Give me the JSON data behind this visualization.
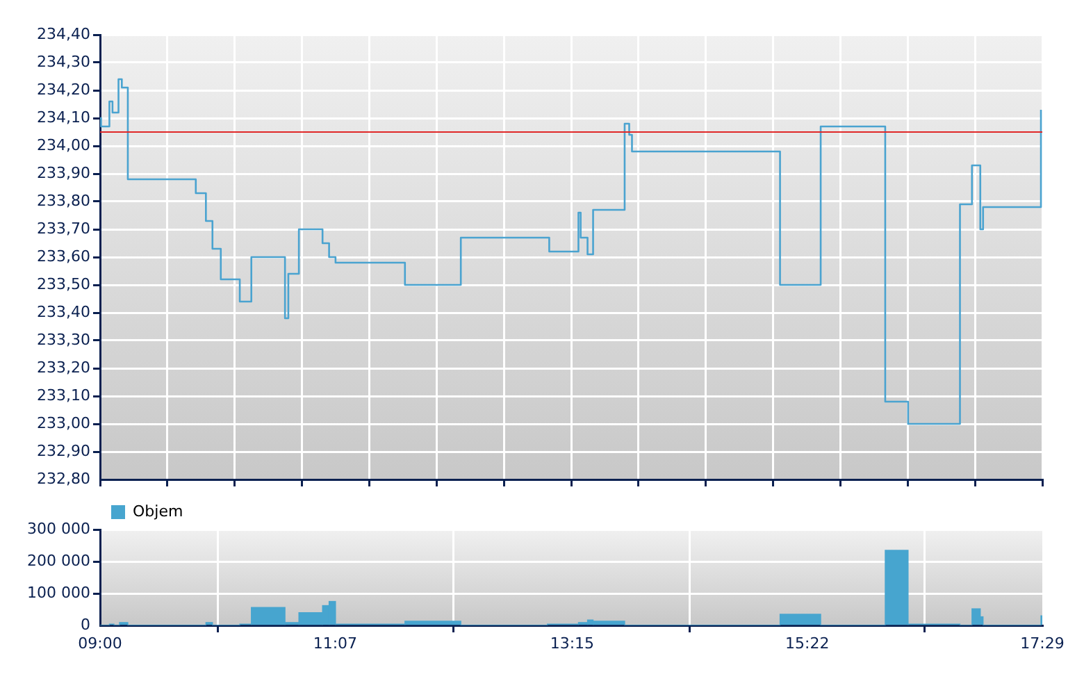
{
  "chart_data": [
    {
      "type": "step",
      "tick_labels": "y",
      "grid": true,
      "legend": false,
      "x": [
        9.0,
        9.009,
        9.084,
        9.112,
        9.166,
        9.196,
        9.25,
        9.862,
        9.953,
        10.012,
        10.087,
        10.258,
        10.362,
        10.665,
        10.695,
        10.79,
        11.003,
        11.062,
        11.12,
        11.745,
        12.248,
        13.044,
        13.307,
        13.327,
        13.389,
        13.439,
        13.723,
        13.764,
        13.789,
        15.122,
        15.488,
        16.069,
        16.275,
        16.742,
        16.85,
        16.925,
        16.95,
        17.471
      ],
      "series": [
        {
          "color": "#4aa3d0",
          "values": [
            234.1,
            234.07,
            234.16,
            234.12,
            234.24,
            234.21,
            233.88,
            233.83,
            233.73,
            233.63,
            233.52,
            233.44,
            233.6,
            233.38,
            233.54,
            233.7,
            233.65,
            233.6,
            233.58,
            233.5,
            233.67,
            233.62,
            233.76,
            233.67,
            233.61,
            233.77,
            234.08,
            234.04,
            233.98,
            233.5,
            234.07,
            233.08,
            233.0,
            233.79,
            233.93,
            233.7,
            233.78,
            234.13
          ]
        }
      ],
      "xlim": [
        9.0,
        17.4833
      ],
      "xticks": [
        {
          "value": 9.0,
          "label": null
        },
        {
          "value": 9.606,
          "label": null
        },
        {
          "value": 10.212,
          "label": null
        },
        {
          "value": 10.818,
          "label": null
        },
        {
          "value": 11.424,
          "label": null
        },
        {
          "value": 12.03,
          "label": null
        },
        {
          "value": 12.636,
          "label": null
        },
        {
          "value": 13.242,
          "label": null
        },
        {
          "value": 13.848,
          "label": null
        },
        {
          "value": 14.454,
          "label": null
        },
        {
          "value": 15.06,
          "label": null
        },
        {
          "value": 15.665,
          "label": null
        },
        {
          "value": 16.271,
          "label": null
        },
        {
          "value": 16.877,
          "label": null
        },
        {
          "value": 17.4833,
          "label": null
        }
      ],
      "ylim": [
        232.8,
        234.4
      ],
      "yticks": [
        {
          "value": 232.8,
          "label": "232,80"
        },
        {
          "value": 232.9,
          "label": "232,90"
        },
        {
          "value": 233.0,
          "label": "233,00"
        },
        {
          "value": 233.1,
          "label": "233,10"
        },
        {
          "value": 233.2,
          "label": "233,20"
        },
        {
          "value": 233.3,
          "label": "233,30"
        },
        {
          "value": 233.4,
          "label": "233,40"
        },
        {
          "value": 233.5,
          "label": "233,50"
        },
        {
          "value": 233.6,
          "label": "233,60"
        },
        {
          "value": 233.7,
          "label": "233,70"
        },
        {
          "value": 233.8,
          "label": "233,80"
        },
        {
          "value": 233.9,
          "label": "233,90"
        },
        {
          "value": 234.0,
          "label": "234,00"
        },
        {
          "value": 234.1,
          "label": "234,10"
        },
        {
          "value": 234.2,
          "label": "234,20"
        },
        {
          "value": 234.3,
          "label": "234,30"
        },
        {
          "value": 234.4,
          "label": "234,40"
        }
      ],
      "ref_lines": [
        {
          "axis": "y",
          "value": 234.05,
          "color": "#e02828"
        }
      ]
    },
    {
      "type": "histogram",
      "grid": true,
      "legend": "top left",
      "bins": [
        9.0,
        9.084,
        9.125,
        9.175,
        9.25,
        9.953,
        10.012,
        10.258,
        10.362,
        10.665,
        10.79,
        11.003,
        11.062,
        11.12,
        11.745,
        12.248,
        13.027,
        13.307,
        13.389,
        13.439,
        13.723,
        15.122,
        15.488,
        16.069,
        16.275,
        16.742,
        16.85,
        16.925,
        16.95,
        17.471,
        17.4833
      ],
      "series": [
        {
          "name": "Objem",
          "color": "#47a5cf",
          "values": [
            0,
            4000,
            0,
            9000,
            0,
            9000,
            0,
            4000,
            56000,
            9000,
            40000,
            62000,
            75000,
            4000,
            13000,
            0,
            4000,
            9000,
            17000,
            13000,
            0,
            35000,
            0,
            235000,
            4000,
            0,
            52000,
            27000,
            0,
            30000
          ]
        }
      ],
      "xlim": [
        9.0,
        17.4833
      ],
      "xticks": [
        {
          "value": 9.0,
          "label": "09:00"
        },
        {
          "value": 11.1167,
          "label": "11:07"
        },
        {
          "value": 13.25,
          "label": "13:15"
        },
        {
          "value": 15.3667,
          "label": "15:22"
        },
        {
          "value": 17.4833,
          "label": "17:29"
        }
      ],
      "ylim": [
        0,
        300000
      ],
      "yticks": [
        {
          "value": 0,
          "label": "0"
        },
        {
          "value": 100000,
          "label": "100 000"
        },
        {
          "value": 200000,
          "label": "200 000"
        },
        {
          "value": 300000,
          "label": "300 000"
        }
      ]
    }
  ]
}
